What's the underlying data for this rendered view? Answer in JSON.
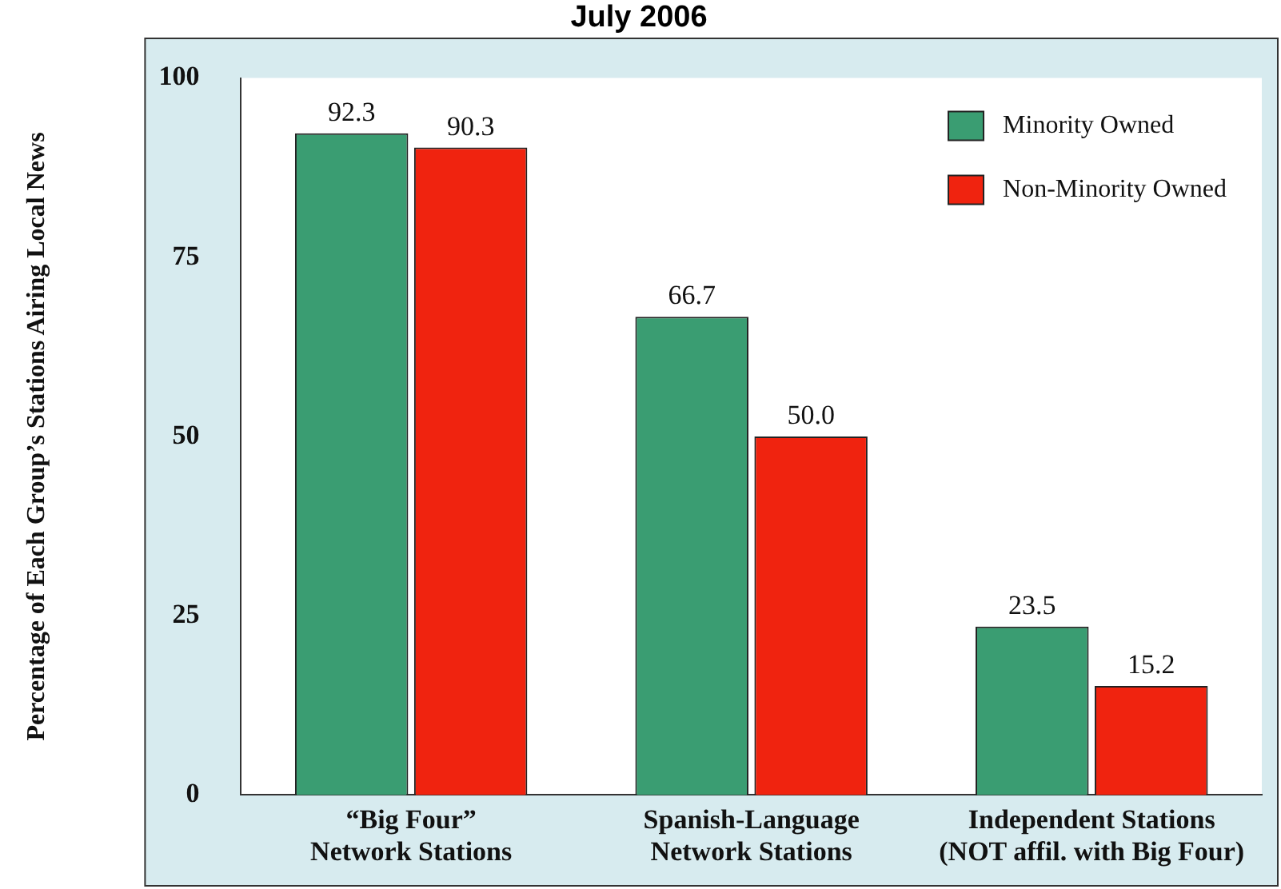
{
  "chart_data": {
    "type": "bar",
    "title": "July 2006",
    "ylabel": "Percentage of Each Group’s Stations Airing Local News",
    "categories": [
      "“Big Four”\nNetwork Stations",
      "Spanish-Language\nNetwork Stations",
      "Independent Stations\n(NOT affil. with Big Four)"
    ],
    "series": [
      {
        "name": "Minority Owned",
        "color": "#3a9d72",
        "values": [
          92.3,
          66.7,
          23.5
        ],
        "value_labels": [
          "92.3",
          "66.7",
          "23.5"
        ]
      },
      {
        "name": "Non-Minority Owned",
        "color": "#f0230f",
        "values": [
          90.3,
          50.0,
          15.2
        ],
        "value_labels": [
          "90.3",
          "50.0",
          "15.2"
        ]
      }
    ],
    "ylim": [
      0,
      100
    ],
    "yticks": [
      0,
      25,
      50,
      75,
      100
    ],
    "grid": false,
    "legend": "top right"
  }
}
